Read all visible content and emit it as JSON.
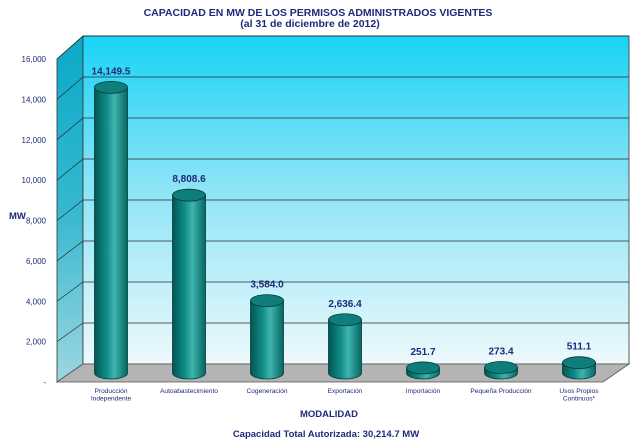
{
  "chart_data": {
    "type": "bar",
    "title": "CAPACIDAD EN MW DE LOS PERMISOS ADMINISTRADOS VIGENTES",
    "subtitle": "(al 31 de diciembre de 2012)",
    "ylabel": "MW",
    "xlabel": "MODALIDAD",
    "ylim": [
      0,
      16000
    ],
    "yticks": [
      "-",
      "2,000",
      "4,000",
      "6,000",
      "8,000",
      "10,000",
      "12,000",
      "14,000",
      "16,000"
    ],
    "categories": [
      [
        "Producción",
        "Independente"
      ],
      [
        "Autoabastecimiento"
      ],
      [
        "Cogeneración"
      ],
      [
        "Exportación"
      ],
      [
        "Importación"
      ],
      [
        "Pequeña Producción"
      ],
      [
        "Usos Propios",
        "Continuos*"
      ]
    ],
    "values": [
      14149.5,
      8808.6,
      3584.0,
      2636.4,
      251.7,
      273.4,
      511.1
    ],
    "value_labels": [
      "14,149.5",
      "8,808.6",
      "3,584.0",
      "2,636.4",
      "251.7",
      "273.4",
      "511.1"
    ],
    "footnote": "Capacidad Total Autorizada: 30,214.7 MW",
    "grid": true,
    "colors": {
      "bar": "#0e8a86",
      "bar_dark": "#045552",
      "bar_light": "#5ec4be",
      "wall_top": "#19d3f6",
      "wall_bottom": "#e8f8fc",
      "floor": "#b4b4b4",
      "text": "#1f2a7a"
    }
  }
}
